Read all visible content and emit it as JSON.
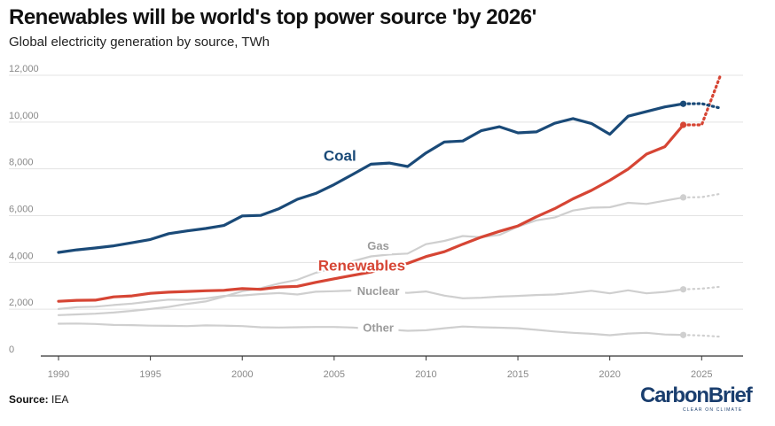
{
  "header": {
    "title": "Renewables will be world's top power source 'by 2026'",
    "subtitle": "Global electricity generation by source, TWh"
  },
  "footer": {
    "source_label": "Source:",
    "source_value": "IEA",
    "logo_name": "CarbonBrief",
    "logo_tagline": "CLEAR ON CLIMATE"
  },
  "colors": {
    "coal": "#1a4a78",
    "renewables": "#d64534",
    "gas": "#cfcfcf",
    "nuclear": "#cfcfcf",
    "other": "#cfcfcf",
    "grid": "#e3e3e3",
    "axis": "#333333"
  },
  "chart_data": {
    "type": "line",
    "title": "Renewables will be world's top power source 'by 2026'",
    "subtitle": "Global electricity generation by source, TWh",
    "xlabel": "",
    "ylabel": "",
    "xlim": [
      1990,
      2026
    ],
    "ylim": [
      0,
      12000
    ],
    "grid": true,
    "x_ticks": [
      1990,
      1995,
      2000,
      2005,
      2010,
      2015,
      2020,
      2025
    ],
    "x_tick_labels": [
      "1990",
      "1995",
      "2000",
      "2005",
      "2010",
      "2015",
      "2020",
      "2025"
    ],
    "y_ticks": [
      0,
      2000,
      4000,
      6000,
      8000,
      10000,
      12000
    ],
    "y_tick_labels": [
      "0",
      "2,000",
      "4,000",
      "6,000",
      "8,000",
      "10,000",
      "12,000"
    ],
    "x": [
      1990,
      1991,
      1992,
      1993,
      1994,
      1995,
      1996,
      1997,
      1998,
      1999,
      2000,
      2001,
      2002,
      2003,
      2004,
      2005,
      2006,
      2007,
      2008,
      2009,
      2010,
      2011,
      2012,
      2013,
      2014,
      2015,
      2016,
      2017,
      2018,
      2019,
      2020,
      2021,
      2022,
      2023,
      2024
    ],
    "series": [
      {
        "key": "coal",
        "name": "Coal",
        "values": [
          4430,
          4540,
          4620,
          4710,
          4840,
          4980,
          5230,
          5350,
          5450,
          5580,
          5990,
          6010,
          6300,
          6700,
          6950,
          7330,
          7760,
          8200,
          8250,
          8100,
          8680,
          9150,
          9190,
          9630,
          9800,
          9540,
          9580,
          9950,
          10150,
          9940,
          9480,
          10250,
          10450,
          10650,
          10780
        ],
        "forecast_x": [
          2024,
          2025,
          2026
        ],
        "forecast_values": [
          10780,
          10790,
          10600
        ]
      },
      {
        "key": "renewables",
        "name": "Renewables",
        "values": [
          2340,
          2380,
          2390,
          2530,
          2570,
          2680,
          2730,
          2760,
          2790,
          2810,
          2880,
          2850,
          2950,
          2980,
          3150,
          3300,
          3450,
          3590,
          3800,
          3960,
          4250,
          4460,
          4780,
          5080,
          5330,
          5560,
          5950,
          6300,
          6720,
          7080,
          7510,
          7990,
          8630,
          8950,
          9880
        ],
        "forecast_x": [
          2024,
          2025,
          2026
        ],
        "forecast_values": [
          9880,
          9880,
          11950
        ]
      },
      {
        "key": "gas",
        "name": "Gas",
        "values": [
          1750,
          1780,
          1810,
          1860,
          1930,
          2010,
          2100,
          2230,
          2330,
          2540,
          2770,
          2900,
          3100,
          3260,
          3560,
          3760,
          4050,
          4260,
          4340,
          4380,
          4780,
          4920,
          5130,
          5080,
          5180,
          5530,
          5800,
          5920,
          6220,
          6340,
          6360,
          6550,
          6500,
          6640,
          6780
        ],
        "forecast_x": [
          2024,
          2025,
          2026
        ],
        "forecast_values": [
          6780,
          6790,
          6930
        ]
      },
      {
        "key": "nuclear",
        "name": "Nuclear",
        "values": [
          2010,
          2090,
          2110,
          2180,
          2240,
          2330,
          2410,
          2400,
          2460,
          2570,
          2590,
          2650,
          2690,
          2630,
          2750,
          2770,
          2800,
          2750,
          2740,
          2700,
          2760,
          2580,
          2470,
          2490,
          2540,
          2570,
          2610,
          2630,
          2700,
          2790,
          2680,
          2810,
          2680,
          2740,
          2850
        ],
        "forecast_x": [
          2024,
          2025,
          2026
        ],
        "forecast_values": [
          2850,
          2880,
          2960
        ]
      },
      {
        "key": "other",
        "name": "Other",
        "values": [
          1380,
          1390,
          1370,
          1330,
          1320,
          1300,
          1290,
          1280,
          1310,
          1300,
          1280,
          1230,
          1220,
          1230,
          1240,
          1240,
          1220,
          1170,
          1130,
          1080,
          1100,
          1190,
          1260,
          1230,
          1210,
          1190,
          1120,
          1050,
          990,
          950,
          890,
          960,
          990,
          920,
          900
        ],
        "forecast_x": [
          2024,
          2025,
          2026
        ],
        "forecast_values": [
          900,
          880,
          830
        ]
      }
    ],
    "annotations": [
      {
        "series": "coal",
        "text": "Coal"
      },
      {
        "series": "renewables",
        "text": "Renewables"
      },
      {
        "series": "gas",
        "text": "Gas"
      },
      {
        "series": "nuclear",
        "text": "Nuclear"
      },
      {
        "series": "other",
        "text": "Other"
      }
    ]
  }
}
